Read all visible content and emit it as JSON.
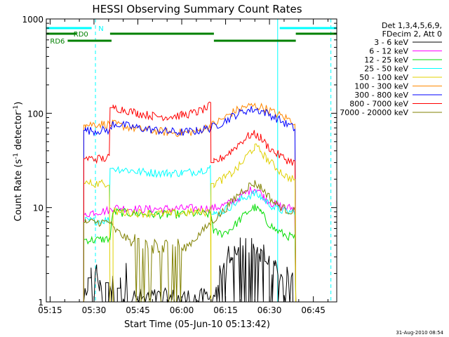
{
  "chart_data": {
    "type": "line",
    "title": "HESSI Observing Summary Count Rates",
    "xlabel": "Start Time (05-Jun-10 05:13:42)",
    "ylabel_main": "Count Rate (s",
    "ylabel_sup1": "-1",
    "ylabel_mid": " detector",
    "ylabel_sup2": "-1",
    "ylabel_end": ")",
    "y_scale": "log",
    "ylim": [
      1,
      1000
    ],
    "xlim_min": [
      13.7,
      113
    ],
    "x_ticks": [
      "05:15",
      "05:30",
      "05:45",
      "06:00",
      "06:15",
      "06:30",
      "06:45"
    ],
    "x_tick_min": [
      15,
      30,
      45,
      60,
      75,
      90,
      105
    ],
    "y_ticks": [
      "1",
      "10",
      "100",
      "1000"
    ],
    "y_tick_vals": [
      1,
      10,
      100,
      1000
    ],
    "legend_header": [
      "Det 1,3,4,5,6,9,",
      "FDecim 2, Att 0"
    ],
    "legend_position": "right",
    "timestamp": "31-Aug-2010 08:54",
    "series": [
      {
        "name": "3 - 6 keV",
        "color": "#000000",
        "points": [
          [
            26.5,
            1
          ],
          [
            28,
            1
          ],
          [
            29,
            1.8
          ],
          [
            30,
            1.4
          ],
          [
            31,
            2
          ],
          [
            32,
            1.3
          ],
          [
            33,
            1.7
          ],
          [
            34,
            1
          ],
          [
            35,
            1.6
          ],
          [
            36,
            1.2
          ],
          [
            37,
            1.8
          ],
          [
            38,
            1
          ],
          [
            39,
            1.4
          ],
          [
            40,
            1.1
          ],
          [
            41,
            1.9
          ],
          [
            42,
            1.2
          ],
          [
            44,
            1
          ],
          [
            60,
            1
          ],
          [
            70,
            1
          ],
          [
            72,
            1.3
          ],
          [
            73,
            1.8
          ],
          [
            74,
            2.2
          ],
          [
            75,
            1.6
          ],
          [
            76,
            2.8
          ],
          [
            77,
            2.2
          ],
          [
            78,
            3.2
          ],
          [
            79,
            2.4
          ],
          [
            80,
            3.6
          ],
          [
            81,
            3
          ],
          [
            82,
            3.8
          ],
          [
            83,
            3.2
          ],
          [
            84,
            3.6
          ],
          [
            85,
            3
          ],
          [
            86,
            3.4
          ],
          [
            87,
            2.6
          ],
          [
            88,
            3
          ],
          [
            89,
            2.2
          ],
          [
            90,
            2.6
          ],
          [
            91,
            1.8
          ],
          [
            92,
            2.2
          ],
          [
            93,
            1.6
          ],
          [
            94,
            1.9
          ],
          [
            95,
            1.2
          ],
          [
            96,
            1.7
          ],
          [
            97,
            1.3
          ],
          [
            98,
            1.6
          ],
          [
            99,
            1
          ]
        ]
      },
      {
        "name": "6 - 12 keV",
        "color": "#ff00ff",
        "points": [
          [
            26.5,
            1
          ],
          [
            27,
            8.5
          ],
          [
            30,
            9
          ],
          [
            34,
            9.2
          ],
          [
            35.5,
            9.5
          ],
          [
            36.5,
            10
          ],
          [
            45,
            9.6
          ],
          [
            55,
            9.7
          ],
          [
            64,
            9.8
          ],
          [
            70,
            9.8
          ],
          [
            72,
            10
          ],
          [
            76,
            11
          ],
          [
            80,
            13
          ],
          [
            83,
            15
          ],
          [
            85,
            16
          ],
          [
            86,
            15.5
          ],
          [
            88,
            13
          ],
          [
            91,
            11
          ],
          [
            95,
            10
          ],
          [
            99,
            9.8
          ],
          [
            100,
            1
          ]
        ]
      },
      {
        "name": "12 - 25 keV",
        "color": "#00dd00",
        "points": [
          [
            26.5,
            1
          ],
          [
            27,
            4.6
          ],
          [
            30,
            4.5
          ],
          [
            33,
            4.6
          ],
          [
            35.5,
            4.7
          ],
          [
            36.5,
            9
          ],
          [
            45,
            8.6
          ],
          [
            55,
            8.4
          ],
          [
            64,
            8.6
          ],
          [
            70,
            8.5
          ],
          [
            71,
            5.5
          ],
          [
            74,
            5.3
          ],
          [
            77,
            6
          ],
          [
            80,
            7.5
          ],
          [
            83,
            9.3
          ],
          [
            85,
            10
          ],
          [
            87,
            9
          ],
          [
            89,
            7.2
          ],
          [
            92,
            5.8
          ],
          [
            96,
            5
          ],
          [
            99,
            4.8
          ],
          [
            100,
            1
          ]
        ]
      },
      {
        "name": "25 - 50 keV",
        "color": "#00ffff",
        "points": [
          [
            26.5,
            1
          ],
          [
            27,
            7.3
          ],
          [
            30,
            7.2
          ],
          [
            33,
            7.3
          ],
          [
            35.5,
            7.4
          ],
          [
            36.5,
            26
          ],
          [
            40,
            25.5
          ],
          [
            45,
            24
          ],
          [
            50,
            23.4
          ],
          [
            55,
            23.2
          ],
          [
            60,
            23.4
          ],
          [
            64,
            24
          ],
          [
            68,
            25.5
          ],
          [
            70,
            27
          ],
          [
            71,
            8.5
          ],
          [
            74,
            9.2
          ],
          [
            77,
            10.5
          ],
          [
            80,
            12
          ],
          [
            83,
            13.5
          ],
          [
            85,
            14
          ],
          [
            87,
            13
          ],
          [
            89,
            11.5
          ],
          [
            92,
            9.8
          ],
          [
            96,
            9
          ],
          [
            99,
            9
          ],
          [
            100,
            1
          ]
        ]
      },
      {
        "name": "50 - 100 keV",
        "color": "#e0d000",
        "points": [
          [
            26.5,
            1
          ],
          [
            27,
            18
          ],
          [
            30,
            18
          ],
          [
            33,
            18
          ],
          [
            35.5,
            18.5
          ],
          [
            36.5,
            1
          ]
        ]
      },
      {
        "name": "100 - 300 keV",
        "color": "#ff8800",
        "points": [
          [
            26.5,
            1
          ],
          [
            27,
            75
          ],
          [
            30,
            77
          ],
          [
            33,
            77
          ],
          [
            35.5,
            76
          ],
          [
            36.5,
            77
          ],
          [
            45,
            68
          ],
          [
            55,
            63
          ],
          [
            60,
            62
          ],
          [
            65,
            64
          ],
          [
            70,
            74
          ],
          [
            74,
            87
          ],
          [
            78,
            105
          ],
          [
            82,
            118
          ],
          [
            85,
            120
          ],
          [
            88,
            115
          ],
          [
            92,
            100
          ],
          [
            96,
            88
          ],
          [
            99,
            80
          ],
          [
            100,
            1
          ]
        ]
      },
      {
        "name": "300 - 800 keV",
        "color": "#0000ff",
        "points": [
          [
            26.5,
            1
          ],
          [
            27,
            66
          ],
          [
            30,
            65
          ],
          [
            33,
            66
          ],
          [
            35.5,
            66
          ],
          [
            36.5,
            78
          ],
          [
            45,
            70
          ],
          [
            55,
            64
          ],
          [
            60,
            63
          ],
          [
            65,
            65
          ],
          [
            70,
            70
          ],
          [
            74,
            80
          ],
          [
            78,
            95
          ],
          [
            82,
            107
          ],
          [
            85,
            110
          ],
          [
            88,
            104
          ],
          [
            92,
            90
          ],
          [
            96,
            76
          ],
          [
            99,
            68
          ],
          [
            100,
            1
          ]
        ]
      },
      {
        "name": "800 - 7000 keV",
        "color": "#ff0000",
        "points": [
          [
            26.5,
            1
          ],
          [
            27,
            33
          ],
          [
            30,
            33
          ],
          [
            33,
            33
          ],
          [
            35.5,
            34
          ],
          [
            36.5,
            115
          ],
          [
            40,
            110
          ],
          [
            45,
            100
          ],
          [
            50,
            94
          ],
          [
            55,
            92
          ],
          [
            60,
            95
          ],
          [
            65,
            102
          ],
          [
            69,
            115
          ],
          [
            70,
            125
          ],
          [
            71,
            30
          ],
          [
            74,
            34
          ],
          [
            77,
            40
          ],
          [
            80,
            49
          ],
          [
            83,
            58
          ],
          [
            85,
            60
          ],
          [
            87,
            55
          ],
          [
            89,
            46
          ],
          [
            92,
            38
          ],
          [
            96,
            32
          ],
          [
            99,
            30
          ],
          [
            100,
            1
          ]
        ]
      },
      {
        "name": "7000 - 20000 keV",
        "color": "#808000",
        "points": [
          [
            26.5,
            1
          ],
          [
            27,
            7
          ],
          [
            30,
            7
          ],
          [
            33,
            7
          ],
          [
            35.5,
            7
          ],
          [
            36.5,
            6
          ],
          [
            40,
            5
          ],
          [
            44,
            4
          ],
          [
            48,
            3.5
          ],
          [
            52,
            3.4
          ],
          [
            56,
            3.4
          ],
          [
            60,
            3.5
          ],
          [
            64,
            4.5
          ],
          [
            68,
            6
          ],
          [
            70,
            7
          ],
          [
            74,
            9
          ],
          [
            77,
            11.5
          ],
          [
            80,
            14.5
          ],
          [
            83,
            17
          ],
          [
            85,
            18
          ],
          [
            87,
            16.5
          ],
          [
            89,
            14
          ],
          [
            92,
            11
          ],
          [
            96,
            9.4
          ],
          [
            99,
            9
          ],
          [
            100,
            1
          ]
        ]
      },
      {
        "name": "",
        "color": "#e0d000",
        "points": [
          [
            70,
            1
          ],
          [
            71,
            18
          ],
          [
            74,
            20
          ],
          [
            77,
            23
          ],
          [
            80,
            28
          ],
          [
            83,
            38
          ],
          [
            85,
            44
          ],
          [
            87,
            40
          ],
          [
            89,
            33
          ],
          [
            92,
            27
          ],
          [
            96,
            21
          ],
          [
            99,
            20
          ],
          [
            100,
            1
          ]
        ]
      },
      {
        "name": "",
        "color": "#e0d000",
        "points": [
          [
            36.5,
            1
          ],
          [
            37,
            9
          ],
          [
            45,
            8.8
          ],
          [
            55,
            8.6
          ],
          [
            64,
            8.9
          ],
          [
            70,
            9
          ],
          [
            71,
            1
          ]
        ]
      }
    ]
  },
  "flag_bars": [
    {
      "label": "N",
      "color": "#00ffff",
      "ranges": [
        [
          13.7,
          29.2
        ],
        [
          93.5,
          113
        ]
      ]
    },
    {
      "label": "RD0",
      "color": "#008000",
      "ranges": [
        [
          13.7,
          24
        ],
        [
          35.5,
          71
        ],
        [
          99,
          113
        ]
      ]
    },
    {
      "label": "RD6",
      "color": "#008000",
      "ranges": [
        [
          21,
          36
        ],
        [
          71,
          99
        ]
      ]
    }
  ],
  "vertical_lines": [
    {
      "style": "solid",
      "color": "#00ffff",
      "x_min": [
        13.7,
        92.8
      ]
    },
    {
      "style": "dashed",
      "color": "#00ffff",
      "x_min": [
        30.5,
        111
      ]
    }
  ]
}
